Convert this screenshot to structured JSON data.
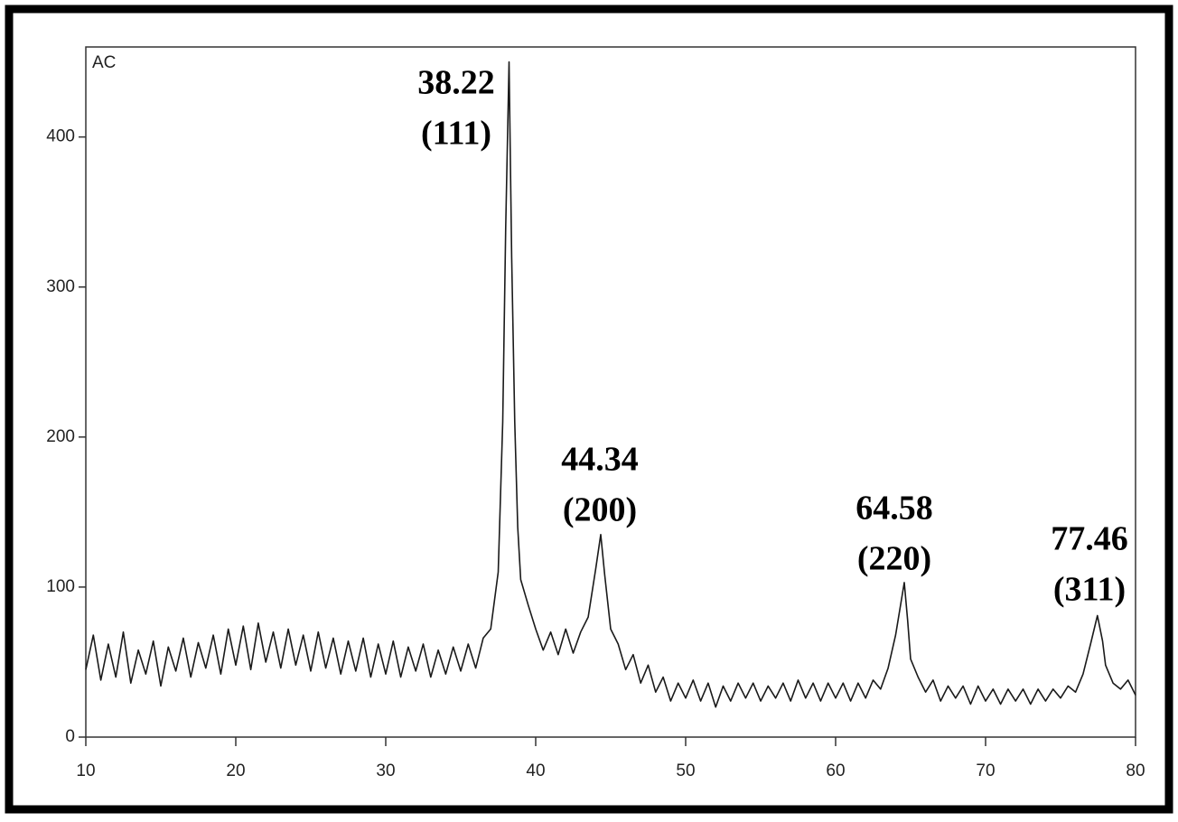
{
  "chart_data": {
    "type": "line",
    "label": "AC",
    "x": [
      10,
      10.5,
      11,
      11.5,
      12,
      12.5,
      13,
      13.5,
      14,
      14.5,
      15,
      15.5,
      16,
      16.5,
      17,
      17.5,
      18,
      18.5,
      19,
      19.5,
      20,
      20.5,
      21,
      21.5,
      22,
      22.5,
      23,
      23.5,
      24,
      24.5,
      25,
      25.5,
      26,
      26.5,
      27,
      27.5,
      28,
      28.5,
      29,
      29.5,
      30,
      30.5,
      31,
      31.5,
      32,
      32.5,
      33,
      33.5,
      34,
      34.5,
      35,
      35.5,
      36,
      36.5,
      37,
      37.5,
      37.8,
      38.0,
      38.22,
      38.4,
      38.6,
      38.8,
      39,
      39.5,
      40,
      40.5,
      41,
      41.5,
      42,
      42.5,
      43,
      43.5,
      44,
      44.34,
      44.6,
      45,
      45.5,
      46,
      46.5,
      47,
      47.5,
      48,
      48.5,
      49,
      49.5,
      50,
      50.5,
      51,
      51.5,
      52,
      52.5,
      53,
      53.5,
      54,
      54.5,
      55,
      55.5,
      56,
      56.5,
      57,
      57.5,
      58,
      58.5,
      59,
      59.5,
      60,
      60.5,
      61,
      61.5,
      62,
      62.5,
      63,
      63.5,
      64,
      64.58,
      64.8,
      65,
      65.5,
      66,
      66.5,
      67,
      67.5,
      68,
      68.5,
      69,
      69.5,
      70,
      70.5,
      71,
      71.5,
      72,
      72.5,
      73,
      73.5,
      74,
      74.5,
      75,
      75.5,
      76,
      76.5,
      77,
      77.46,
      77.8,
      78,
      78.5,
      79,
      79.5,
      80
    ],
    "series": [
      {
        "color": "#1a1a1a",
        "values": [
          45,
          68,
          38,
          62,
          40,
          70,
          36,
          58,
          42,
          64,
          34,
          60,
          44,
          66,
          40,
          63,
          46,
          68,
          42,
          72,
          48,
          74,
          45,
          76,
          50,
          70,
          46,
          72,
          48,
          68,
          44,
          70,
          46,
          66,
          42,
          64,
          44,
          66,
          40,
          62,
          42,
          64,
          40,
          60,
          44,
          62,
          40,
          58,
          42,
          60,
          44,
          62,
          46,
          66,
          72,
          110,
          210,
          340,
          450,
          320,
          210,
          140,
          105,
          88,
          72,
          58,
          70,
          55,
          72,
          56,
          70,
          80,
          112,
          135,
          108,
          72,
          62,
          45,
          55,
          36,
          48,
          30,
          40,
          24,
          36,
          26,
          38,
          24,
          36,
          20,
          34,
          24,
          36,
          26,
          36,
          24,
          34,
          26,
          36,
          24,
          38,
          26,
          36,
          24,
          36,
          26,
          36,
          24,
          36,
          26,
          38,
          32,
          46,
          68,
          103,
          78,
          52,
          40,
          30,
          38,
          24,
          34,
          26,
          34,
          22,
          34,
          24,
          32,
          22,
          32,
          24,
          32,
          22,
          32,
          24,
          32,
          26,
          34,
          30,
          42,
          62,
          81,
          64,
          48,
          36,
          32,
          38,
          28
        ]
      }
    ],
    "xlim": [
      10,
      80
    ],
    "ylim": [
      0,
      460
    ],
    "xticks": [
      10,
      20,
      30,
      40,
      50,
      60,
      70,
      80
    ],
    "yticks": [
      0,
      100,
      200,
      300,
      400
    ],
    "annotations": [
      {
        "peak": "38.22",
        "plane": "(111)"
      },
      {
        "peak": "44.34",
        "plane": "(200)"
      },
      {
        "peak": "64.58",
        "plane": "(220)"
      },
      {
        "peak": "77.46",
        "plane": "(311)"
      }
    ]
  }
}
